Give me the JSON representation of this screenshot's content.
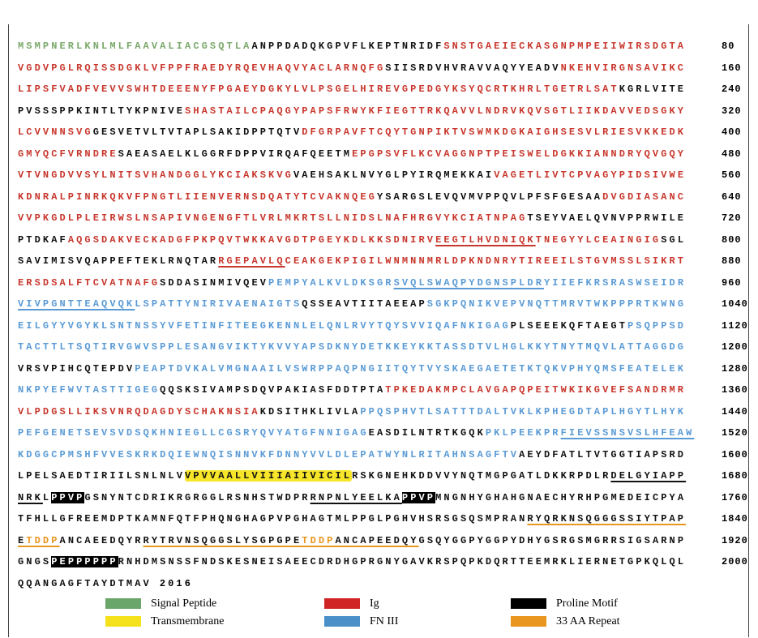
{
  "lines": [
    {
      "segments": [
        {
          "text": "MSMPNERLKNLMLFAAVALIACGSQTLA",
          "style": "signal"
        },
        {
          "text": "ANPPDADQKGPVFLKEPTNRIDF",
          "style": "plain"
        },
        {
          "text": "SNSTGAEIECKASGNPMPEIIWIRSDGTA",
          "style": "ig"
        }
      ],
      "number": 80
    },
    {
      "segments": [
        {
          "text": "VGDVPGLRQISSDGKLVFPPFRAEDYRQEVHAQVYACLARNQFG",
          "style": "ig"
        },
        {
          "text": "SIISRDVHVRAVVAQYYEADV",
          "style": "plain"
        },
        {
          "text": "NKEHVIRGNSAVIKC",
          "style": "ig"
        }
      ],
      "number": 160
    },
    {
      "segments": [
        {
          "text": "LIPSFVADFVEVVSWHTDEEENYFPGAEYDGKYLVLPSGELHIREVGPEDGYKSYQCRTKHRLTGETRLSAT",
          "style": "ig"
        },
        {
          "text": "KGRLVITE",
          "style": "plain"
        }
      ],
      "number": 240
    },
    {
      "segments": [
        {
          "text": "PVSSSPPKINTLTYKPNIVE",
          "style": "plain"
        },
        {
          "text": "SHASTAILCPAQGYPAPSFRWYKFIEGTTRKQAVVLNDRVKQVSGTLIIKDAVVEDSGKY",
          "style": "ig"
        }
      ],
      "number": 320
    },
    {
      "segments": [
        {
          "text": "LCVVNNSVG",
          "style": "ig"
        },
        {
          "text": "GESVETVLTVTAPLSAKIDPPTQTV",
          "style": "plain"
        },
        {
          "text": "DFGRPAVFTCQYTGNPIKTVSWMKDGKAIGHSESVLRIESVKKEDK",
          "style": "ig"
        }
      ],
      "number": 400
    },
    {
      "segments": [
        {
          "text": "GMYQCFVRNDRE",
          "style": "ig"
        },
        {
          "text": "SAEASAELKLGGRFDPPVIRQAFQEETM",
          "style": "plain"
        },
        {
          "text": "EPGPSVFLKCVAGGNPTPEISWELDGKKIANNDRYQVGQY",
          "style": "ig"
        }
      ],
      "number": 480
    },
    {
      "segments": [
        {
          "text": "VTVNGDVVSYLNITSVHANDGGLYKCIAKSKVG",
          "style": "ig"
        },
        {
          "text": "VAEHSAKLNVYGLPYIRQMEKKAI",
          "style": "plain"
        },
        {
          "text": "VAGETLIVTCPVAGYPIDSIVWE",
          "style": "ig"
        }
      ],
      "number": 560
    },
    {
      "segments": [
        {
          "text": "KDNRALPINRKQKVFPNGTLIIENVERNSDQATYTCVAKNQEG",
          "style": "ig"
        },
        {
          "text": "YSARGSLEVQVMVPPQVLPFSFGESAA",
          "style": "plain"
        },
        {
          "text": "DVGDIASANC",
          "style": "ig"
        }
      ],
      "number": 640
    },
    {
      "segments": [
        {
          "text": "VVPKGDLPLEIRWSLNSAPIVNGENGFTLVRLMKRTSLLNIDSLNAFHRGVYKCIATNPAG",
          "style": "ig"
        },
        {
          "text": "TSEYVAELQVNVPPRWILE",
          "style": "plain"
        }
      ],
      "number": 720
    },
    {
      "segments": [
        {
          "text": "PTDKAF",
          "style": "plain"
        },
        {
          "text": "AQGSDAKVECKADGFPKPQVTWKKAVGDTPGEYKDLKKSDNIRV",
          "style": "ig"
        },
        {
          "text": "EEGTLHVDNIQK",
          "style": "ig-underline"
        },
        {
          "text": "TNEGYYLCEAINGIG",
          "style": "ig"
        },
        {
          "text": "SGL",
          "style": "plain"
        }
      ],
      "number": 800
    },
    {
      "segments": [
        {
          "text": "SAVIMISVQAPPEFTEKLRNQTAR",
          "style": "plain"
        },
        {
          "text": "RGEPAVLQ",
          "style": "ig-underline"
        },
        {
          "text": "CEAKGEKPIGILWNMNNMRLDPKNDNRYTIREEILSTGVMSSLSIKRT",
          "style": "ig"
        }
      ],
      "number": 880
    },
    {
      "segments": [
        {
          "text": "ERSDSALFTCVATNAFG",
          "style": "ig"
        },
        {
          "text": "SDDASINMIVQEV",
          "style": "plain"
        },
        {
          "text": "PEMPYALKVLDKSGR",
          "style": "fn"
        },
        {
          "text": "SVQLSWAQPYDGNSPLDR",
          "style": "fn-underline"
        },
        {
          "text": "YIIEFKRSRASWSEIDR",
          "style": "fn"
        }
      ],
      "number": 960
    },
    {
      "segments": [
        {
          "text": "VIVPGNTTEAQVQK",
          "style": "fn-underline"
        },
        {
          "text": "LSPATTYNIRIVAENAIGTS",
          "style": "fn"
        },
        {
          "text": "QSSEAVTIITAEEAP",
          "style": "plain"
        },
        {
          "text": "SGKPQNIKVEPVNQTTMRVTWKPPPRTKWNG",
          "style": "fn"
        }
      ],
      "number": 1040
    },
    {
      "segments": [
        {
          "text": "EILGYYVGYKLSNTNSSYVFETINFITEEGKENNLELQNLRVYTQYSVVIQAFNKIGAG",
          "style": "fn"
        },
        {
          "text": "PLSEEEKQFTAEGT",
          "style": "plain"
        },
        {
          "text": "PSQPPSD",
          "style": "fn"
        }
      ],
      "number": 1120
    },
    {
      "segments": [
        {
          "text": "TACTTLTSQTIRVGWVSPPLESANGVIKTYKVVYAPSDKNYDETKKEYKKTASSDTVLHGLKKYTNYTMQVLATTAGGDG",
          "style": "fn"
        }
      ],
      "number": 1200
    },
    {
      "segments": [
        {
          "text": "VRSVPIHCQTEPDV",
          "style": "plain"
        },
        {
          "text": "PEAPTDVKALVMGNAAILVSWRPPAQPNGIITQYTVYSKAEGAETETKTQKVPHYQMSFEATELEK",
          "style": "fn"
        }
      ],
      "number": 1280
    },
    {
      "segments": [
        {
          "text": "NKPYEFWVTASTTIGEG",
          "style": "fn"
        },
        {
          "text": "QQSKSIVAMPSDQVPAKIASFDDTPTA",
          "style": "plain"
        },
        {
          "text": "TPKEDAKMPCLAVGAPQPEITWKIKGVEFSANDRMR",
          "style": "ig"
        }
      ],
      "number": 1360
    },
    {
      "segments": [
        {
          "text": "VLPDGSLLIKSVNRQDAGDYSCHAKNSIA",
          "style": "ig"
        },
        {
          "text": "KDSITHKLIVLA",
          "style": "plain"
        },
        {
          "text": "PPQSPHVTLSATTTDALTVKLKPHEGDTAPLHGYTLHYK",
          "style": "fn"
        }
      ],
      "number": 1440
    },
    {
      "segments": [
        {
          "text": "PEFGENETSEVSVDSQKHNIEGLLCGSRYQVYATGFNNIGAG",
          "style": "fn"
        },
        {
          "text": "EASDILNTRTKGQK",
          "style": "plain"
        },
        {
          "text": "PKLPEEKPR",
          "style": "fn"
        },
        {
          "text": "FIEVSSNSVSLHFEAW",
          "style": "fn-underline"
        }
      ],
      "number": 1520
    },
    {
      "segments": [
        {
          "text": "KDGGCPMSHFVVESKRKDQIEWNQISNNVKFDNNYVVLDLEPATWYNLRITAHNSAGFTV",
          "style": "fn"
        },
        {
          "text": "AEYDFATLTVTGGTIAPSRD",
          "style": "plain"
        }
      ],
      "number": 1600
    },
    {
      "segments": [
        {
          "text": "LPELSAEDTIRIILSNLNLV",
          "style": "plain"
        },
        {
          "text": "VPVVAALLVIIIAIIVICIL",
          "style": "tm"
        },
        {
          "text": "RSKGNEHKDDVVYNQTMGPGATLDKKRPDLR",
          "style": "plain"
        },
        {
          "text": "DELGYIAPP",
          "style": "plain-underline"
        }
      ],
      "number": 1680
    },
    {
      "segments": [
        {
          "text": "NRK",
          "style": "plain-underline"
        },
        {
          "text": "L",
          "style": "plain"
        },
        {
          "text": "PPVP",
          "style": "proline",
          "marker": "#1"
        },
        {
          "text": "GSNYNTCDRIKRGRGGLRSNHSTWDPR",
          "style": "plain"
        },
        {
          "text": "RNPNLYEELKA",
          "style": "plain-underline"
        },
        {
          "text": "PPVP",
          "style": "proline",
          "marker": "#2"
        },
        {
          "text": "MNGNHYGHAHGNAECHYRHPGMEDEICPYA",
          "style": "plain"
        }
      ],
      "number": 1760
    },
    {
      "segments": [
        {
          "text": "TFHLLGFREEMDPTKAMNFQTFPHQNGHAGPVPGHAGTMLPPGLPGHVHSRSGSQSMPRAN",
          "style": "plain"
        },
        {
          "text": "RYQRKNSQGGGSSIYTPAP",
          "style": "repeat"
        }
      ],
      "number": 1840
    },
    {
      "segments": [
        {
          "text": "E",
          "style": "repeat"
        },
        {
          "text": "TDDP",
          "style": "repeat-orange"
        },
        {
          "text": "ANCAEEDQYR",
          "style": "plain"
        },
        {
          "text": "RYTRVNSQGGSLYSGPGPE",
          "style": "repeat"
        },
        {
          "text": "TDDP",
          "style": "repeat-orange"
        },
        {
          "text": "ANCAPEEDQY",
          "style": "repeat"
        },
        {
          "text": "GSQYGGPYGGPYDHYGSRGSMGRRSIGSARNP",
          "style": "plain"
        }
      ],
      "number": 1920
    },
    {
      "segments": [
        {
          "text": "GNGS",
          "style": "plain"
        },
        {
          "text": "PEPPPPPP",
          "style": "proline"
        },
        {
          "text": "RNHDMSNSSFNDSKESNEISAEECDRDHGPRGNYGAVKRSPQPKDQRTTEEMRKLIERNETGPKQLQL",
          "style": "plain"
        }
      ],
      "number": 2000
    },
    {
      "segments": [
        {
          "text": "QQANGAGFTAYDTMAV",
          "style": "plain"
        }
      ],
      "number": 2016,
      "inline": true
    }
  ],
  "legend": [
    {
      "label": "Signal Peptide",
      "color": "#6aa56a"
    },
    {
      "label": "Ig",
      "color": "#d02424"
    },
    {
      "label": "Proline Motif",
      "color": "#000000"
    },
    {
      "label": "Transmembrane",
      "color": "#f5e11a"
    },
    {
      "label": "FN III",
      "color": "#4a90c8"
    },
    {
      "label": "33 AA Repeat",
      "color": "#e8961e"
    }
  ]
}
